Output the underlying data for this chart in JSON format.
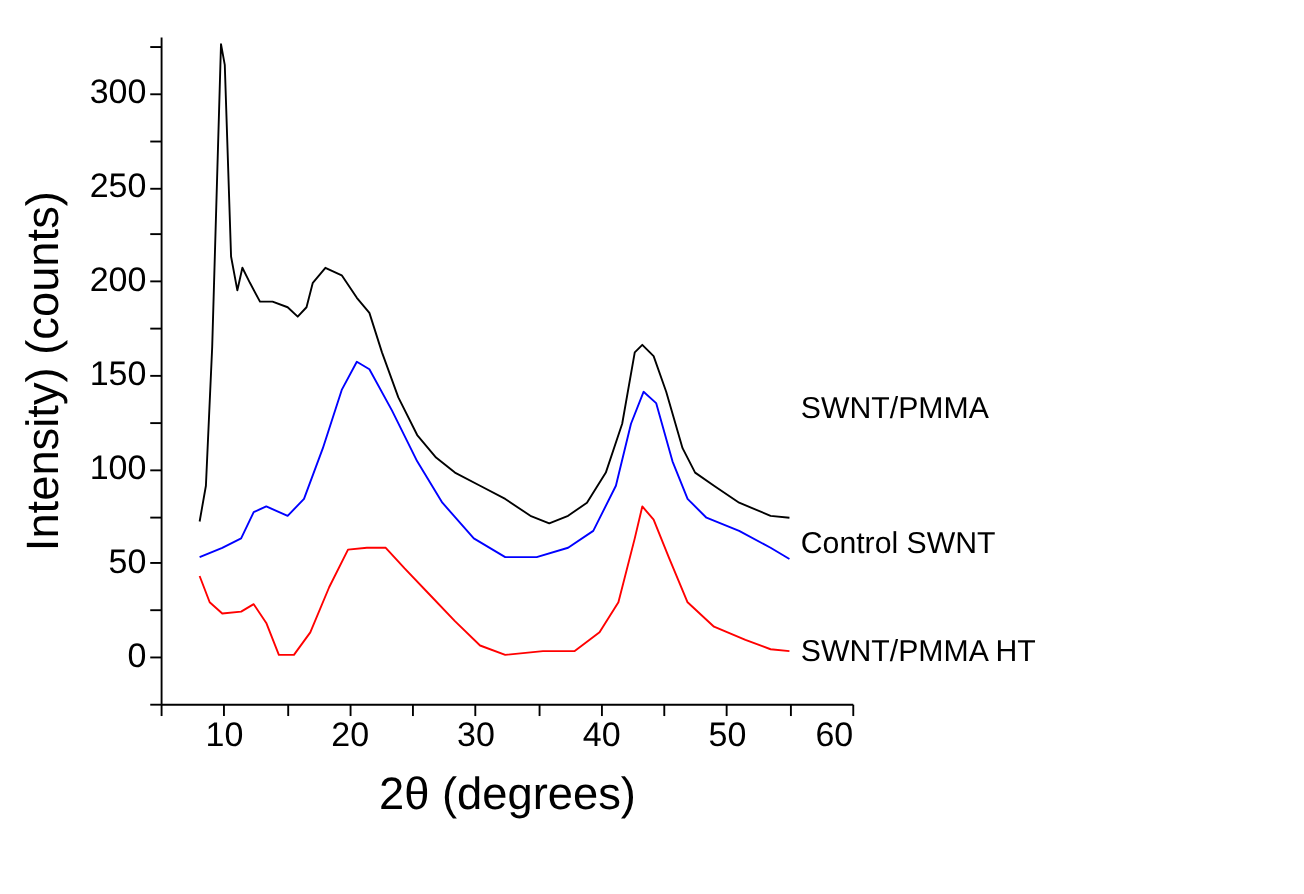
{
  "chart_data": {
    "type": "line",
    "xlabel": "2θ (degrees)",
    "ylabel": "Intensity) (counts)",
    "xlim": [
      5,
      60
    ],
    "ylim": [
      -25,
      330
    ],
    "xticks": [
      {
        "value": 5,
        "label": null
      },
      10,
      {
        "value": 15,
        "label": null
      },
      20,
      {
        "value": 25,
        "label": null
      },
      30,
      {
        "value": 35,
        "label": null
      },
      40,
      {
        "value": 45,
        "label": null
      },
      50,
      {
        "value": 55,
        "label": null
      },
      60
    ],
    "yticks": [
      {
        "value": -25,
        "label": null
      },
      0,
      {
        "value": 25,
        "label": null
      },
      50,
      {
        "value": 75,
        "label": null
      },
      100,
      {
        "value": 125,
        "label": null
      },
      150,
      {
        "value": 175,
        "label": null
      },
      200,
      {
        "value": 225,
        "label": null
      },
      250,
      {
        "value": 275,
        "label": null
      },
      300,
      {
        "value": 325,
        "label": null
      }
    ],
    "grid": false,
    "legend": false,
    "line_style": "solid",
    "marker": "none",
    "series": [
      {
        "name": "SWNT/PMMA",
        "color": "#000000",
        "x": [
          8.1,
          8.6,
          9.1,
          9.8,
          10.1,
          10.6,
          11.1,
          11.5,
          12.1,
          12.9,
          13.9,
          15.1,
          15.9,
          16.6,
          17.1,
          18.1,
          19.4,
          20.6,
          21.6,
          22.6,
          23.9,
          25.4,
          26.9,
          28.4,
          30.4,
          32.4,
          34.4,
          35.9,
          37.4,
          38.9,
          40.4,
          41.7,
          42.7,
          43.3,
          44.2,
          45.2,
          46.5,
          47.5,
          49.0,
          51.0,
          53.5,
          55.0
        ],
        "values": [
          72,
          91,
          165,
          326,
          315,
          213,
          195,
          207,
          199,
          189,
          189,
          186,
          181,
          186,
          199,
          207,
          203,
          191,
          183,
          162,
          138,
          118,
          106,
          98,
          91,
          84,
          75,
          71,
          75,
          82,
          98,
          124,
          162,
          166,
          160,
          141,
          111,
          98,
          91,
          82,
          75,
          74
        ]
      },
      {
        "name": "Control SWNT",
        "color": "#0000ff",
        "x": [
          8.1,
          9.9,
          11.4,
          12.4,
          13.4,
          15.1,
          16.4,
          17.9,
          19.4,
          20.6,
          21.6,
          23.4,
          25.4,
          27.4,
          29.9,
          32.4,
          34.9,
          37.4,
          39.4,
          41.2,
          42.4,
          43.4,
          44.4,
          45.7,
          46.9,
          48.4,
          51.0,
          53.5,
          55.0
        ],
        "values": [
          53,
          58,
          63,
          77,
          80,
          75,
          84,
          111,
          142,
          157,
          153,
          131,
          104,
          82,
          63,
          53,
          53,
          58,
          67,
          91,
          124,
          141,
          135,
          104,
          84,
          74,
          67,
          58,
          52
        ]
      },
      {
        "name": "SWNT/PMMA HT",
        "color": "#ff0000",
        "x": [
          8.1,
          8.9,
          9.9,
          11.4,
          12.4,
          13.4,
          14.4,
          15.6,
          16.9,
          18.4,
          19.9,
          21.4,
          22.9,
          24.4,
          26.4,
          28.4,
          30.4,
          32.4,
          35.4,
          37.9,
          39.9,
          41.4,
          42.7,
          43.3,
          44.2,
          45.4,
          46.9,
          49.0,
          51.5,
          53.5,
          55.0
        ],
        "values": [
          43,
          29,
          23,
          24,
          28,
          18,
          1,
          1,
          13,
          37,
          57,
          58,
          58,
          47,
          33,
          19,
          6,
          1,
          3,
          3,
          13,
          29,
          63,
          80,
          73,
          53,
          29,
          16,
          9,
          4,
          3
        ]
      }
    ]
  }
}
